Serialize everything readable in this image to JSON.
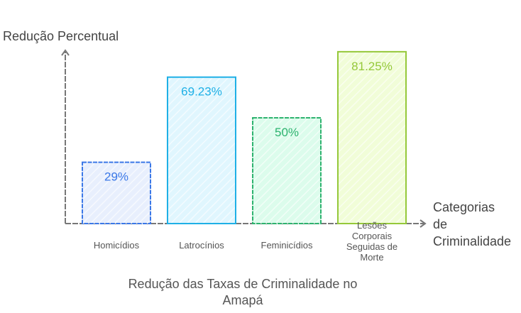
{
  "chart_data": {
    "type": "bar",
    "title": "Redução das Taxas de Criminalidade no Amapá",
    "title_lines": [
      "Redução das Taxas de Criminalidade no",
      "Amapá"
    ],
    "ylabel": "Redução Percentual",
    "xlabel": "Categorias de Criminalidade",
    "xlabel_lines": [
      "Categorias",
      "de",
      "Criminalidade"
    ],
    "categories": [
      "Homicídios",
      "Latrocínios",
      "Feminicídios",
      "Lesões Corporais Seguidas de Morte"
    ],
    "category_lines": [
      [
        "Homicídios"
      ],
      [
        "Latrocínios"
      ],
      [
        "Feminicídios"
      ],
      [
        "Lesões",
        "Corporais",
        "Seguidas de",
        "Morte"
      ]
    ],
    "values": [
      29,
      69.23,
      50,
      81.25
    ],
    "data_labels": [
      "29%",
      "69.23%",
      "50%",
      "81.25%"
    ],
    "ylim": [
      0,
      100
    ],
    "grid": false,
    "colors": [
      {
        "stroke": "#3b78e7",
        "fill": "#e8effd",
        "label": "#3b78e7",
        "dashed": true
      },
      {
        "stroke": "#1fb0e6",
        "fill": "#e0f6fe",
        "label": "#1fb0e6",
        "dashed": false
      },
      {
        "stroke": "#2eb36f",
        "fill": "#dcfcec",
        "label": "#2eb36f",
        "dashed": true
      },
      {
        "stroke": "#95c83a",
        "fill": "#f1fdd8",
        "label": "#95c83a",
        "dashed": false
      }
    ]
  }
}
